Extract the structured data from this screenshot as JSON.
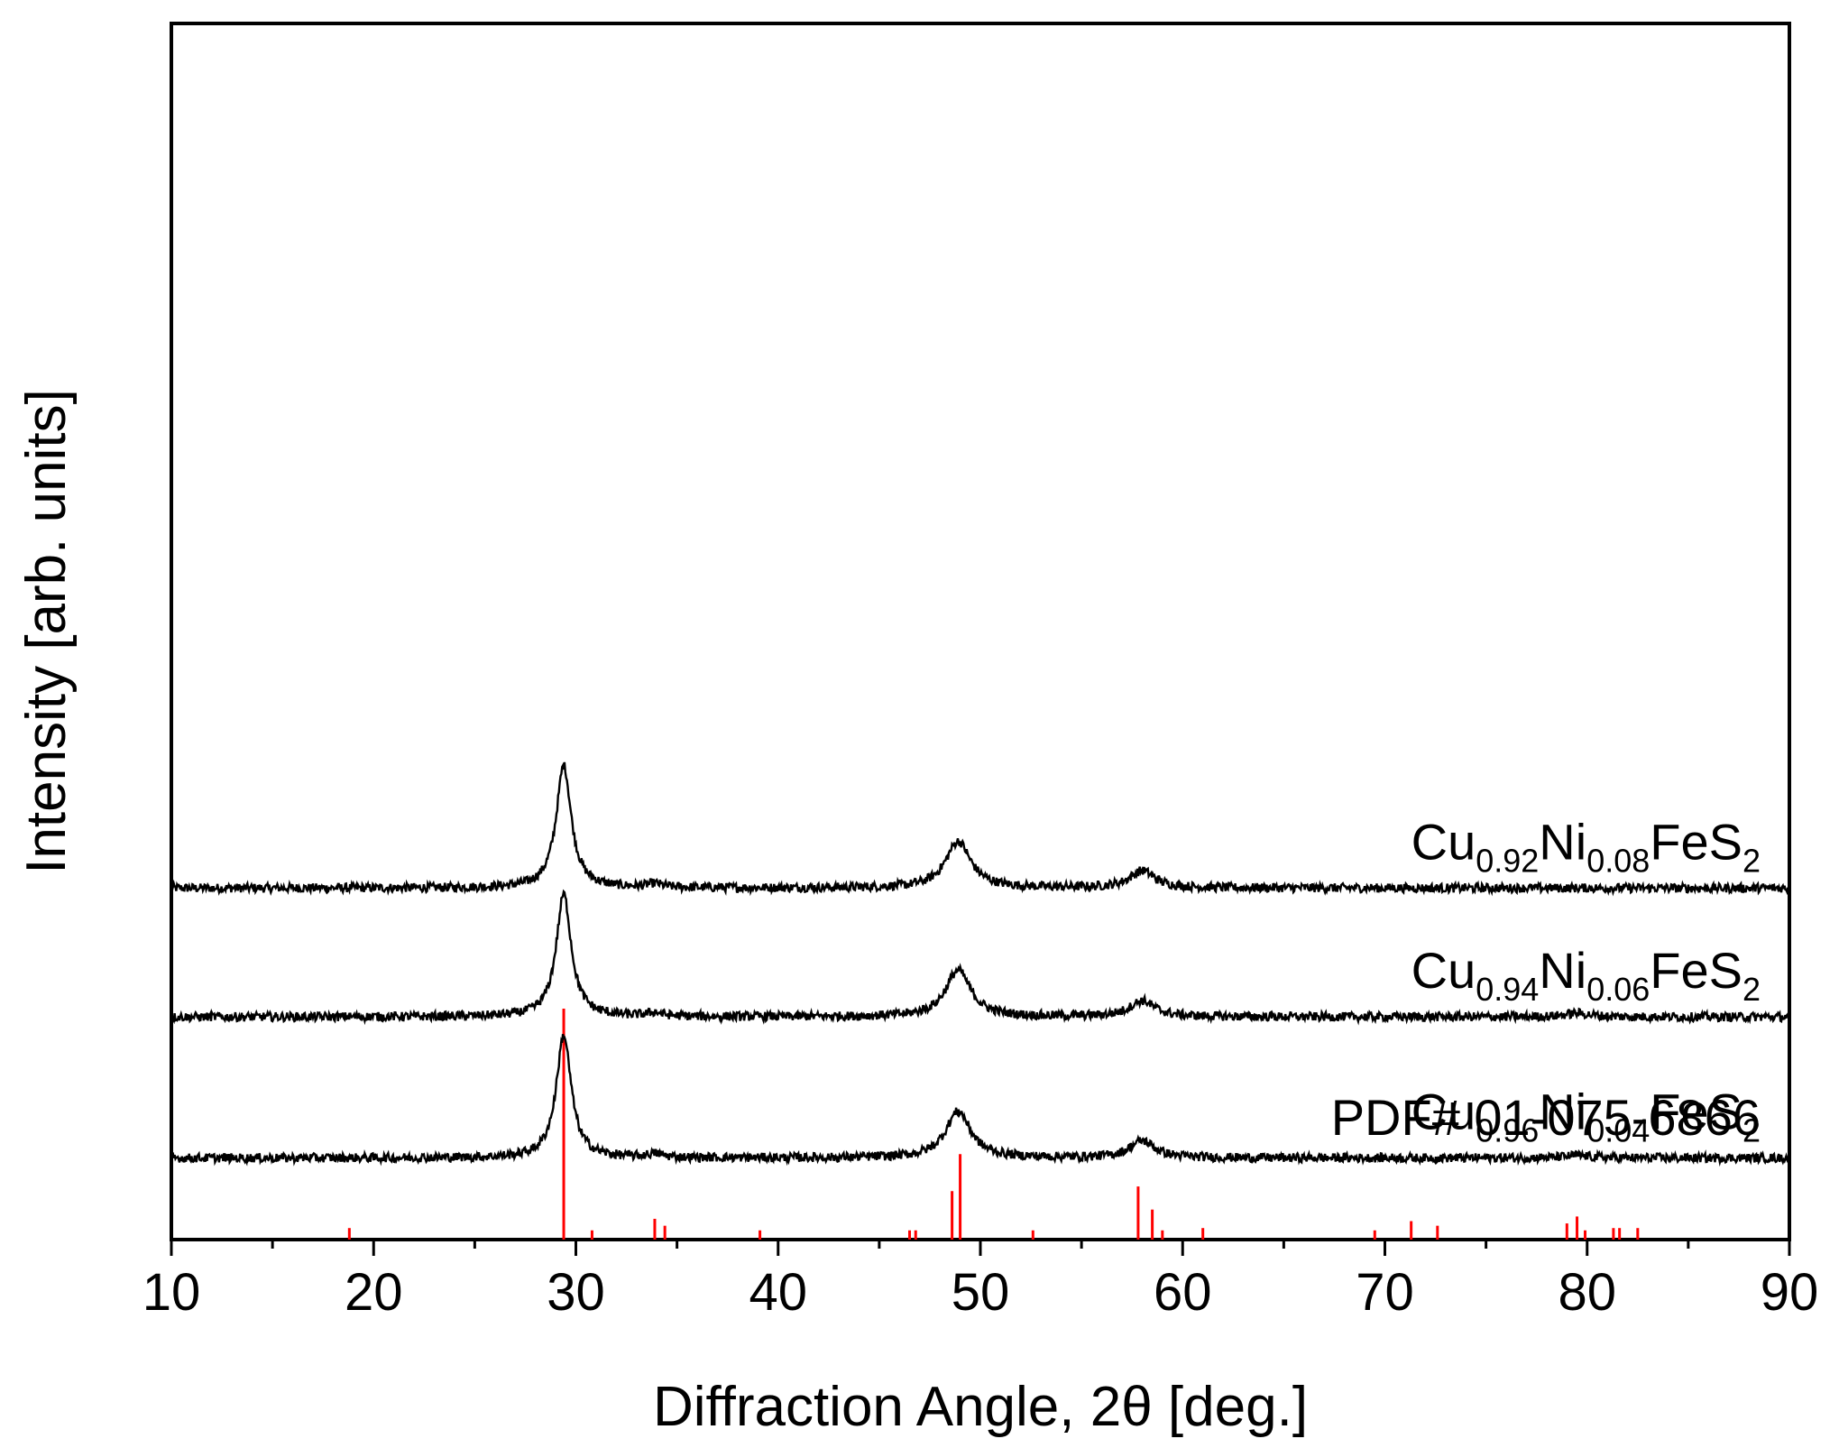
{
  "chart_data": {
    "type": "line",
    "xlabel": "Diffraction Angle, 2θ [deg.]",
    "ylabel": "Intensity [arb. units]",
    "xlim": [
      10,
      90
    ],
    "x_ticks": [
      "10",
      "20",
      "30",
      "40",
      "50",
      "60",
      "70",
      "80",
      "90"
    ],
    "y_ticks": [],
    "grid": false,
    "series": [
      {
        "name": "Cu0.92Ni0.08FeS2",
        "label_parts": [
          {
            "text": "Cu",
            "sub": false
          },
          {
            "text": "0.92",
            "sub": true
          },
          {
            "text": "Ni",
            "sub": false
          },
          {
            "text": "0.08",
            "sub": true
          },
          {
            "text": "FeS",
            "sub": false
          },
          {
            "text": "2",
            "sub": true
          }
        ],
        "offset": 2.6,
        "peaks": [
          {
            "x": 29.4,
            "height": 1.0
          },
          {
            "x": 33.9,
            "height": 0.03
          },
          {
            "x": 48.9,
            "height": 0.38
          },
          {
            "x": 58.0,
            "height": 0.14
          }
        ]
      },
      {
        "name": "Cu0.94Ni0.06FeS2",
        "label_parts": [
          {
            "text": "Cu",
            "sub": false
          },
          {
            "text": "0.94",
            "sub": true
          },
          {
            "text": "Ni",
            "sub": false
          },
          {
            "text": "0.06",
            "sub": true
          },
          {
            "text": "FeS",
            "sub": false
          },
          {
            "text": "2",
            "sub": true
          }
        ],
        "offset": 1.55,
        "peaks": [
          {
            "x": 29.4,
            "height": 1.0
          },
          {
            "x": 33.9,
            "height": 0.03
          },
          {
            "x": 48.9,
            "height": 0.38
          },
          {
            "x": 58.0,
            "height": 0.13
          },
          {
            "x": 79.5,
            "height": 0.03
          }
        ]
      },
      {
        "name": "Cu0.96Ni0.04FeS2",
        "label_parts": [
          {
            "text": "Cu",
            "sub": false
          },
          {
            "text": "0.96",
            "sub": true
          },
          {
            "text": "Ni",
            "sub": false
          },
          {
            "text": "0.04",
            "sub": true
          },
          {
            "text": "FeS",
            "sub": false
          },
          {
            "text": "2",
            "sub": true
          }
        ],
        "offset": 0.4,
        "peaks": [
          {
            "x": 29.4,
            "height": 1.0
          },
          {
            "x": 33.9,
            "height": 0.03
          },
          {
            "x": 48.9,
            "height": 0.38
          },
          {
            "x": 58.0,
            "height": 0.14
          },
          {
            "x": 79.5,
            "height": 0.02
          }
        ]
      }
    ],
    "reference": {
      "name": "PDF#  01-075-6866",
      "color": "#ff0000",
      "lines": [
        {
          "x": 18.8,
          "i": 5
        },
        {
          "x": 29.4,
          "i": 100
        },
        {
          "x": 30.8,
          "i": 4
        },
        {
          "x": 33.9,
          "i": 9
        },
        {
          "x": 34.4,
          "i": 6
        },
        {
          "x": 39.1,
          "i": 4
        },
        {
          "x": 46.5,
          "i": 4
        },
        {
          "x": 46.8,
          "i": 4
        },
        {
          "x": 48.6,
          "i": 21
        },
        {
          "x": 49.0,
          "i": 37
        },
        {
          "x": 52.6,
          "i": 4
        },
        {
          "x": 57.8,
          "i": 23
        },
        {
          "x": 58.5,
          "i": 13
        },
        {
          "x": 59.0,
          "i": 4
        },
        {
          "x": 61.0,
          "i": 5
        },
        {
          "x": 69.5,
          "i": 4
        },
        {
          "x": 71.3,
          "i": 8
        },
        {
          "x": 72.6,
          "i": 6
        },
        {
          "x": 79.0,
          "i": 7
        },
        {
          "x": 79.5,
          "i": 10
        },
        {
          "x": 79.9,
          "i": 4
        },
        {
          "x": 81.3,
          "i": 5
        },
        {
          "x": 81.6,
          "i": 5
        },
        {
          "x": 82.5,
          "i": 5
        }
      ]
    },
    "colors": {
      "data": "#000000",
      "reference": "#ff0000",
      "axes": "#000000"
    }
  }
}
